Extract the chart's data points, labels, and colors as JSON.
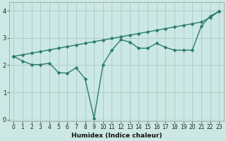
{
  "xlabel": "Humidex (Indice chaleur)",
  "x": [
    0,
    1,
    2,
    3,
    4,
    5,
    6,
    7,
    8,
    9,
    10,
    11,
    12,
    13,
    14,
    15,
    16,
    17,
    18,
    19,
    20,
    21,
    22,
    23
  ],
  "line1": [
    2.32,
    2.38,
    2.44,
    2.5,
    2.56,
    2.62,
    2.68,
    2.74,
    2.8,
    2.86,
    2.92,
    2.98,
    3.04,
    3.1,
    3.16,
    3.22,
    3.28,
    3.34,
    3.4,
    3.46,
    3.52,
    3.58,
    3.75,
    3.97
  ],
  "line2": [
    2.32,
    2.15,
    2.02,
    2.02,
    2.07,
    1.73,
    1.7,
    1.9,
    1.5,
    0.05,
    2.02,
    2.55,
    2.93,
    2.85,
    2.62,
    2.62,
    2.8,
    2.65,
    2.55,
    2.55,
    2.55,
    3.42,
    3.8,
    3.97
  ],
  "line_color": "#2a7b6e",
  "bg_color": "#cce8e4",
  "grid_color": "#aacfca",
  "ylim": [
    -0.05,
    4.3
  ],
  "xlim": [
    -0.5,
    23.5
  ],
  "yticks": [
    0,
    1,
    2,
    3,
    4
  ],
  "xticks": [
    0,
    1,
    2,
    3,
    4,
    5,
    6,
    7,
    8,
    9,
    10,
    11,
    12,
    13,
    14,
    15,
    16,
    17,
    18,
    19,
    20,
    21,
    22,
    23
  ],
  "tick_fontsize": 5.5,
  "xlabel_fontsize": 6.5,
  "linewidth": 1.0,
  "markersize": 2.5
}
